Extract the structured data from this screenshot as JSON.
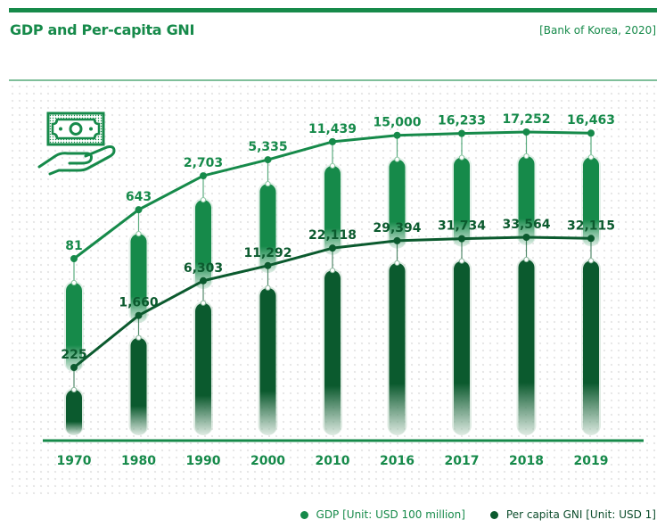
{
  "header": {
    "title": "GDP and Per-capita GNI",
    "source": "[Bank of Korea, 2020]"
  },
  "colors": {
    "gdp": "#168a4a",
    "gni": "#0b5a2e",
    "accent": "#168a4a"
  },
  "icon": "money-in-hand-icon",
  "legend": {
    "gdp_label": "GDP [Unit: USD 100 million]",
    "gni_label": "Per capita GNI [Unit: USD 1]"
  },
  "chart_data": {
    "type": "line",
    "title": "GDP and Per-capita GNI",
    "xlabel": "",
    "ylabel": "",
    "categories": [
      "1970",
      "1980",
      "1990",
      "2000",
      "2010",
      "2016",
      "2017",
      "2018",
      "2019"
    ],
    "series": [
      {
        "name": "GDP [Unit: USD 100 million]",
        "values": [
          81,
          643,
          2703,
          5335,
          11439,
          15000,
          16233,
          17252,
          16463
        ],
        "labels": [
          "81",
          "643",
          "2,703",
          "5,335",
          "11,439",
          "15,000",
          "16,233",
          "17,252",
          "16,463"
        ]
      },
      {
        "name": "Per capita GNI [Unit: USD 1]",
        "values": [
          225,
          1660,
          6303,
          11292,
          22118,
          29394,
          31734,
          33564,
          32115
        ],
        "labels": [
          "225",
          "1,660",
          "6,303",
          "11,292",
          "22,118",
          "29,394",
          "31,734",
          "33,564",
          "32,115"
        ]
      }
    ],
    "legend_position": "bottom-right",
    "grid": false,
    "source": "[Bank of Korea, 2020]"
  }
}
